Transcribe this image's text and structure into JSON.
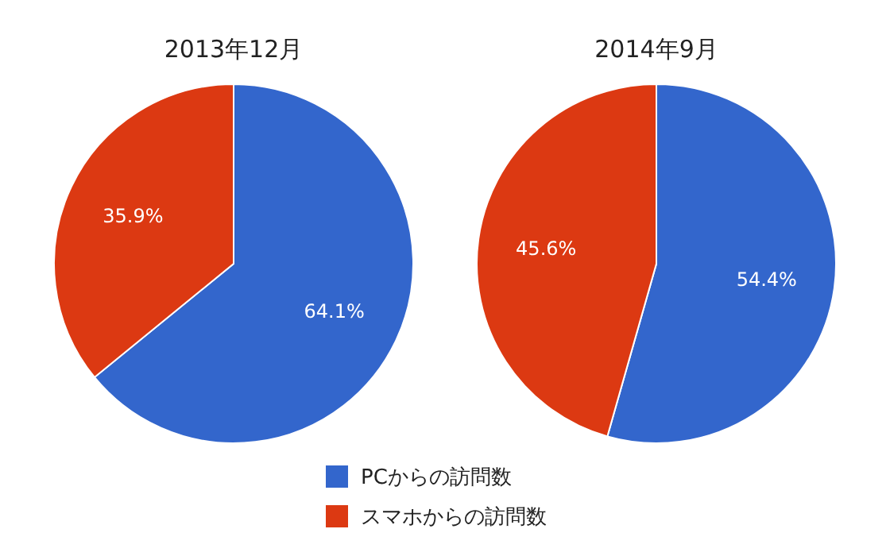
{
  "chart_data": [
    {
      "type": "pie",
      "title": "2013年12月",
      "categories": [
        "PCからの訪問数",
        "スマホからの訪問数"
      ],
      "values": [
        64.1,
        35.9
      ],
      "colors": [
        "#3366cc",
        "#dc3912"
      ],
      "value_labels": [
        "64.1%",
        "35.9%"
      ],
      "legend": "bottom"
    },
    {
      "type": "pie",
      "title": "2014年9月",
      "values": [
        54.4,
        45.6
      ],
      "colors": [
        "#3366cc",
        "#dc3912"
      ],
      "value_labels": [
        "54.4%",
        "45.6%"
      ]
    }
  ]
}
